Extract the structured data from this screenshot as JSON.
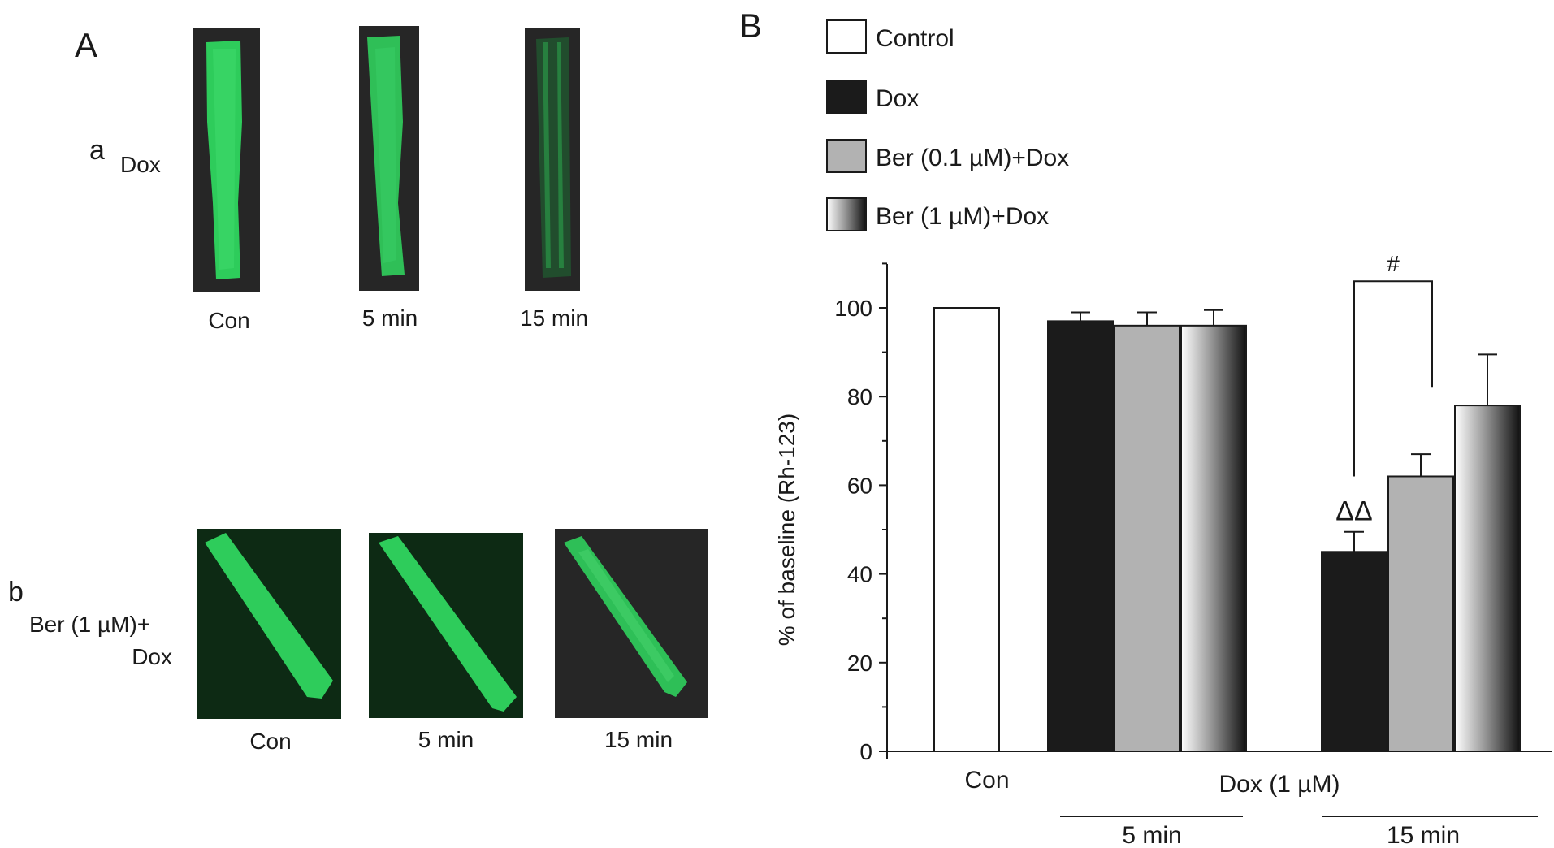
{
  "panel_a": {
    "label": "A",
    "row_a": {
      "letter": "a",
      "name": "Dox",
      "captions": [
        "Con",
        "5 min",
        "15 min"
      ]
    },
    "row_b": {
      "letter": "b",
      "name_line1": "Ber (1 µM)+",
      "name_line2": "Dox",
      "captions": [
        "Con",
        "5 min",
        "15 min"
      ]
    },
    "colors": {
      "fluorescence": "#2ecc5b",
      "background": "#262626",
      "background_b": "#0d2a14"
    }
  },
  "panel_b": {
    "label": "B"
  },
  "chart_data": {
    "type": "bar",
    "ylabel": "% of baseline (Rh-123)",
    "ylim": [
      0,
      100
    ],
    "yticks": [
      0,
      20,
      40,
      60,
      80,
      100
    ],
    "legend": {
      "placement": "top",
      "entries": [
        {
          "name": "Control",
          "fill": "white"
        },
        {
          "name": "Dox",
          "fill": "black"
        },
        {
          "name": "Ber (0.1 µM)+Dox",
          "fill": "grey"
        },
        {
          "name": "Ber (1 µM)+Dox",
          "fill": "gradient"
        }
      ]
    },
    "groups": [
      {
        "label": "Con",
        "bars": [
          {
            "series": "Control",
            "value": 100,
            "err": 0
          }
        ]
      },
      {
        "label": "5 min",
        "bars": [
          {
            "series": "Dox",
            "value": 97,
            "err": 2
          },
          {
            "series": "Ber (0.1 µM)+Dox",
            "value": 96,
            "err": 3
          },
          {
            "series": "Ber (1 µM)+Dox",
            "value": 96,
            "err": 3.5
          }
        ]
      },
      {
        "label": "15 min",
        "bars": [
          {
            "series": "Dox",
            "value": 45,
            "err": 4.5,
            "annotation": "ΔΔ"
          },
          {
            "series": "Ber (0.1 µM)+Dox",
            "value": 62,
            "err": 5
          },
          {
            "series": "Ber (1 µM)+Dox",
            "value": 78,
            "err": 11.5
          }
        ]
      }
    ],
    "bracket": {
      "label": "#",
      "between": [
        "15 min Dox",
        "15 min Ber (0.1 µM)+Dox"
      ]
    },
    "xlabel_group": "Dox (1 µM)"
  }
}
